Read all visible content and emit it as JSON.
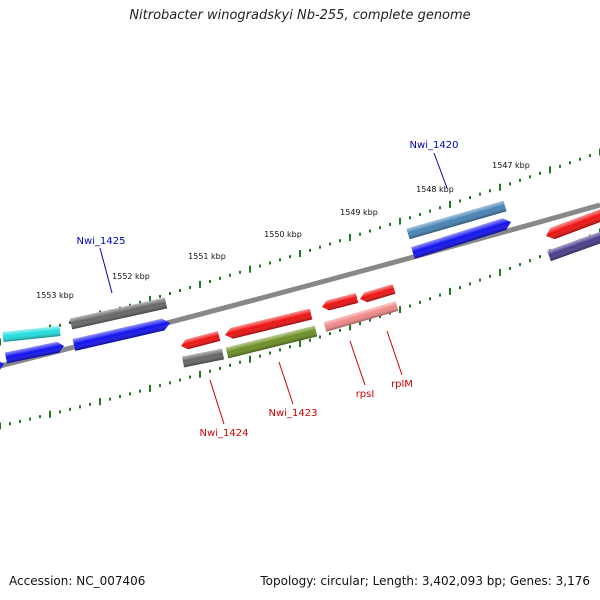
{
  "title": "Nitrobacter winogradskyi Nb-255, complete genome",
  "footer": {
    "accession": "Accession: NC_007406",
    "summary": "Topology: circular; Length: 3,402,093 bp; Genes: 3,176"
  },
  "colors": {
    "backbone": "#888888",
    "tick": "#227722",
    "plus_label": "#0000bb",
    "minus_label": "#cc0000"
  },
  "ruler": [
    "1553 kbp",
    "1552 kbp",
    "1551 kbp",
    "1550 kbp",
    "1549 kbp",
    "1548 kbp",
    "1547 kbp"
  ],
  "genes": [
    {
      "name": "gene-cyan",
      "color": "#22dddd"
    },
    {
      "name": "gene-blue-1",
      "color": "#1111ee"
    },
    {
      "name": "gene-blue-edge",
      "color": "#1111ee"
    },
    {
      "name": "gene-gray-1",
      "color": "#666666"
    },
    {
      "name": "gene-blue-2",
      "color": "#1111ee"
    },
    {
      "name": "gene-red-1",
      "color": "#ee1111"
    },
    {
      "name": "gene-gray-2",
      "color": "#666666"
    },
    {
      "name": "gene-red-2",
      "color": "#ee1111"
    },
    {
      "name": "gene-olive",
      "color": "#6b8e23"
    },
    {
      "name": "gene-red-3",
      "color": "#ee1111"
    },
    {
      "name": "gene-red-4",
      "color": "#ee1111"
    },
    {
      "name": "gene-pink",
      "color": "#f08888"
    },
    {
      "name": "gene-steelblue",
      "color": "#4682b4"
    },
    {
      "name": "gene-blue-3",
      "color": "#1111ee"
    },
    {
      "name": "gene-red-5",
      "color": "#ee1111"
    },
    {
      "name": "gene-slate",
      "color": "#483d8b"
    }
  ],
  "labels": [
    {
      "text": "Nwi_1425",
      "strand": "plus"
    },
    {
      "text": "Nwi_1420",
      "strand": "plus"
    },
    {
      "text": "Nwi_1424",
      "strand": "minus"
    },
    {
      "text": "Nwi_1423",
      "strand": "minus"
    },
    {
      "text": "rpsI",
      "strand": "minus"
    },
    {
      "text": "rplM",
      "strand": "minus"
    }
  ]
}
